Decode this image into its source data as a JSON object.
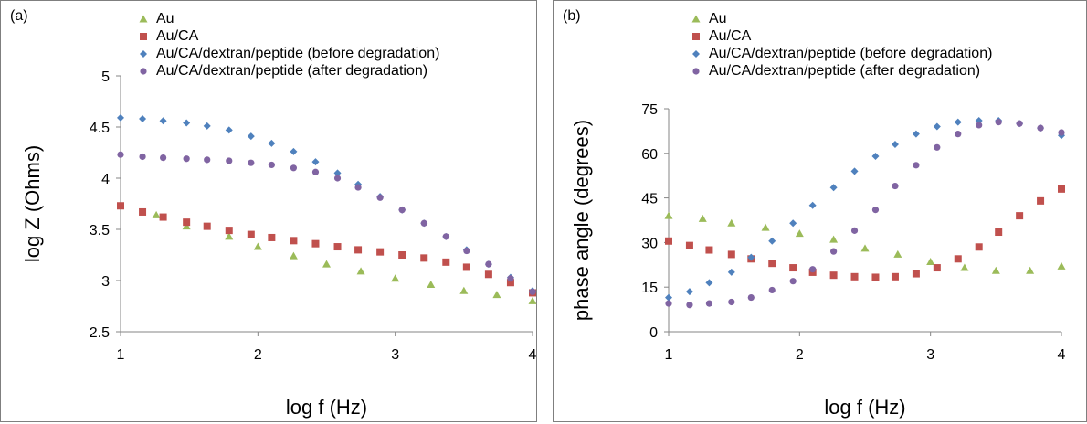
{
  "chart_data": [
    {
      "type": "scatter",
      "panel_label": "(a)",
      "title": "",
      "xlabel": "log f (Hz)",
      "ylabel": "log Z (Ohms)",
      "xlim": [
        1,
        4
      ],
      "ylim": [
        2.5,
        5
      ],
      "xticks": [
        "1",
        "2",
        "3",
        "4"
      ],
      "yticks": [
        "2.5",
        "3",
        "3.5",
        "4",
        "4.5",
        "5"
      ],
      "grid": false,
      "legend_placement": "top-left",
      "series": [
        {
          "name": "Au",
          "marker": "triangle",
          "color": "#9bbb59",
          "x": [
            1.26,
            1.48,
            1.79,
            2.0,
            2.26,
            2.5,
            2.75,
            3.0,
            3.26,
            3.5,
            3.74,
            4.0
          ],
          "y": [
            3.64,
            3.53,
            3.43,
            3.33,
            3.24,
            3.16,
            3.09,
            3.02,
            2.96,
            2.9,
            2.86,
            2.8
          ]
        },
        {
          "name": "Au/CA",
          "marker": "square",
          "color": "#c0504d",
          "x": [
            1.0,
            1.16,
            1.31,
            1.48,
            1.63,
            1.79,
            1.95,
            2.1,
            2.26,
            2.42,
            2.58,
            2.73,
            2.89,
            3.05,
            3.21,
            3.37,
            3.52,
            3.68,
            3.84,
            4.0
          ],
          "y": [
            3.73,
            3.67,
            3.62,
            3.57,
            3.53,
            3.49,
            3.45,
            3.42,
            3.39,
            3.36,
            3.33,
            3.3,
            3.28,
            3.25,
            3.22,
            3.18,
            3.13,
            3.06,
            2.98,
            2.88
          ]
        },
        {
          "name": "Au/CA/dextran/peptide (before degradation)",
          "marker": "diamond",
          "color": "#4f81bd",
          "x": [
            1.0,
            1.16,
            1.31,
            1.48,
            1.63,
            1.79,
            1.95,
            2.1,
            2.26,
            2.42,
            2.58,
            2.73,
            2.89,
            3.05,
            3.21,
            3.37,
            3.52,
            3.68,
            3.84,
            4.0
          ],
          "y": [
            4.59,
            4.58,
            4.56,
            4.54,
            4.51,
            4.47,
            4.41,
            4.34,
            4.26,
            4.16,
            4.05,
            3.94,
            3.82,
            3.69,
            3.56,
            3.43,
            3.3,
            3.16,
            3.03,
            2.9
          ]
        },
        {
          "name": "Au/CA/dextran/peptide (after degradation)",
          "marker": "circle",
          "color": "#8064a2",
          "x": [
            1.0,
            1.16,
            1.31,
            1.48,
            1.63,
            1.79,
            1.95,
            2.1,
            2.26,
            2.42,
            2.58,
            2.73,
            2.89,
            3.05,
            3.21,
            3.37,
            3.52,
            3.68,
            3.84,
            4.0
          ],
          "y": [
            4.23,
            4.21,
            4.2,
            4.19,
            4.18,
            4.17,
            4.15,
            4.13,
            4.1,
            4.06,
            4.0,
            3.91,
            3.81,
            3.69,
            3.56,
            3.43,
            3.29,
            3.16,
            3.02,
            2.89
          ]
        }
      ]
    },
    {
      "type": "scatter",
      "panel_label": "(b)",
      "title": "",
      "xlabel": "log f (Hz)",
      "ylabel": "phase angle (degrees)",
      "xlim": [
        1,
        4
      ],
      "ylim": [
        0,
        75
      ],
      "xticks": [
        "1",
        "2",
        "3",
        "4"
      ],
      "yticks": [
        "0",
        "15",
        "30",
        "45",
        "60",
        "75"
      ],
      "grid": false,
      "legend_placement": "top-left",
      "series": [
        {
          "name": "Au",
          "marker": "triangle",
          "color": "#9bbb59",
          "x": [
            1.0,
            1.26,
            1.48,
            1.74,
            2.0,
            2.26,
            2.5,
            2.75,
            3.0,
            3.26,
            3.5,
            3.76,
            4.0
          ],
          "y": [
            39,
            38,
            36.5,
            35,
            33,
            31,
            28,
            26,
            23.5,
            21.5,
            20.5,
            20.5,
            22
          ]
        },
        {
          "name": "Au/CA",
          "marker": "square",
          "color": "#c0504d",
          "x": [
            1.0,
            1.16,
            1.31,
            1.48,
            1.63,
            1.79,
            1.95,
            2.1,
            2.26,
            2.42,
            2.58,
            2.73,
            2.89,
            3.05,
            3.21,
            3.37,
            3.52,
            3.68,
            3.84,
            4.0
          ],
          "y": [
            30.5,
            29,
            27.5,
            26,
            24.5,
            23,
            21.5,
            20,
            19,
            18.5,
            18.3,
            18.5,
            19.5,
            21.5,
            24.5,
            28.5,
            33.5,
            39,
            44,
            48
          ]
        },
        {
          "name": "Au/CA/dextran/peptide (before degradation)",
          "marker": "diamond",
          "color": "#4f81bd",
          "x": [
            1.0,
            1.16,
            1.31,
            1.48,
            1.63,
            1.79,
            1.95,
            2.1,
            2.26,
            2.42,
            2.58,
            2.73,
            2.89,
            3.05,
            3.21,
            3.37,
            3.52,
            3.68,
            3.84,
            4.0
          ],
          "y": [
            11.5,
            13.5,
            16.5,
            20,
            25,
            30.5,
            36.5,
            42.5,
            48.5,
            54,
            59,
            63,
            66.5,
            69,
            70.5,
            71,
            71,
            70,
            68.5,
            66
          ]
        },
        {
          "name": "Au/CA/dextran/peptide (after degradation)",
          "marker": "circle",
          "color": "#8064a2",
          "x": [
            1.0,
            1.16,
            1.31,
            1.48,
            1.63,
            1.79,
            1.95,
            2.1,
            2.26,
            2.42,
            2.58,
            2.73,
            2.89,
            3.05,
            3.21,
            3.37,
            3.52,
            3.68,
            3.84,
            4.0
          ],
          "y": [
            9.5,
            9,
            9.5,
            10,
            11.5,
            14,
            17,
            21,
            27,
            34,
            41,
            49,
            56,
            62,
            66.5,
            69.5,
            70.5,
            70,
            68.5,
            67
          ]
        }
      ]
    }
  ]
}
